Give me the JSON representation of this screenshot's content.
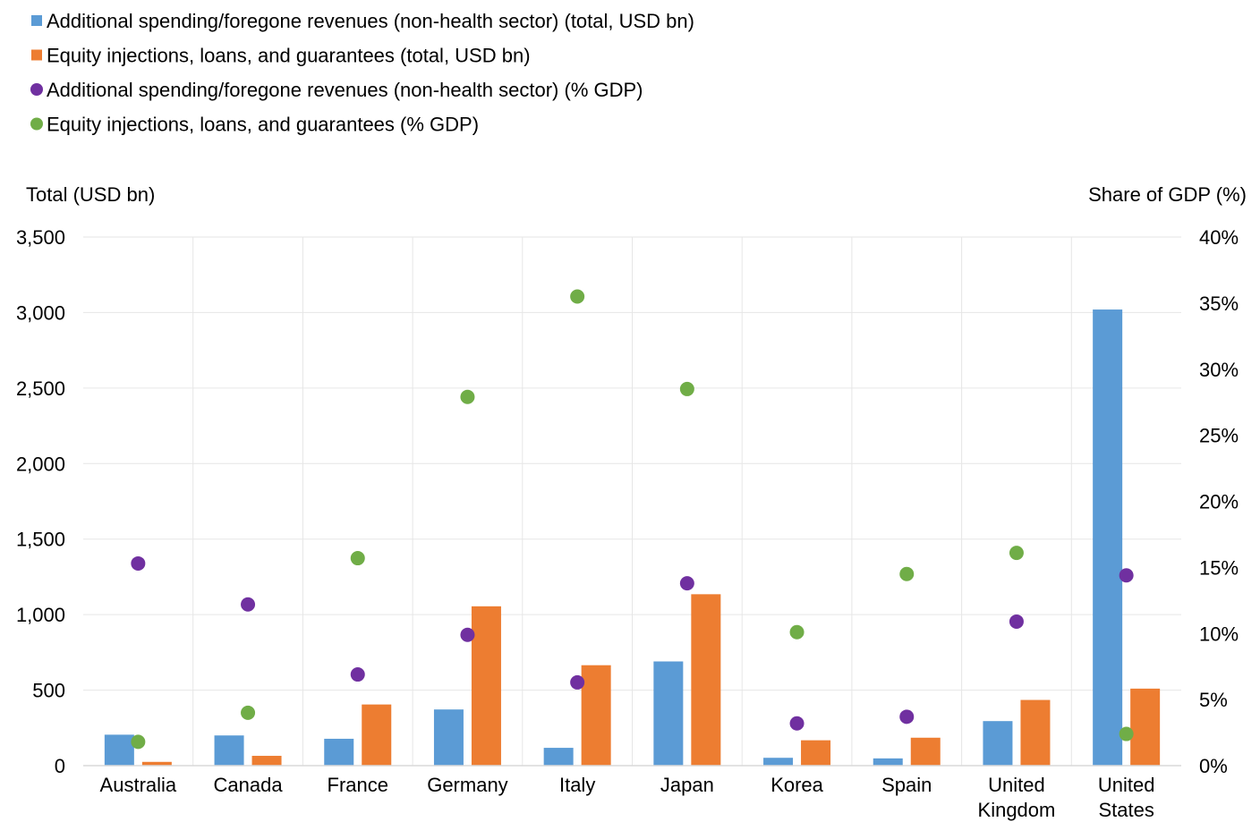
{
  "chart_data": {
    "type": "bar",
    "categories": [
      [
        "Australia"
      ],
      [
        "Canada"
      ],
      [
        "France"
      ],
      [
        "Germany"
      ],
      [
        "Italy"
      ],
      [
        "Japan"
      ],
      [
        "Korea"
      ],
      [
        "Spain"
      ],
      [
        "United",
        "Kingdom"
      ],
      [
        "United",
        "States"
      ]
    ],
    "series": [
      {
        "name": "Additional spending/foregone revenues (non-health sector) (total, USD bn)",
        "kind": "bar",
        "axis": "left",
        "color": "#5b9bd5",
        "values": [
          205,
          200,
          178,
          372,
          118,
          690,
          52,
          48,
          295,
          3020
        ]
      },
      {
        "name": "Equity injections, loans, and guarantees (total, USD bn)",
        "kind": "bar",
        "axis": "left",
        "color": "#ed7d31",
        "values": [
          25,
          65,
          405,
          1055,
          665,
          1135,
          168,
          185,
          435,
          510
        ]
      },
      {
        "name": "Additional spending/foregone revenues (non-health sector) (% GDP)",
        "kind": "dot",
        "axis": "right",
        "color": "#7030a0",
        "values": [
          15.3,
          12.2,
          6.9,
          9.9,
          6.3,
          13.8,
          3.2,
          3.7,
          10.9,
          14.4
        ]
      },
      {
        "name": "Equity injections, loans, and guarantees (% GDP)",
        "kind": "dot",
        "axis": "right",
        "color": "#70ad47",
        "values": [
          1.8,
          4.0,
          15.7,
          27.9,
          35.5,
          28.5,
          10.1,
          14.5,
          16.1,
          2.4
        ]
      }
    ],
    "ylabel": "Total (USD bn)",
    "y2label": "Share of GDP (%)",
    "ylim": [
      0,
      3500
    ],
    "y2lim": [
      0,
      40
    ],
    "yticks": [
      "0",
      "500",
      "1,000",
      "1,500",
      "2,000",
      "2,500",
      "3,000",
      "3,500"
    ],
    "y2ticks": [
      "0%",
      "5%",
      "10%",
      "15%",
      "20%",
      "25%",
      "30%",
      "35%",
      "40%"
    ],
    "grid": true,
    "legend_position": "top-left"
  }
}
